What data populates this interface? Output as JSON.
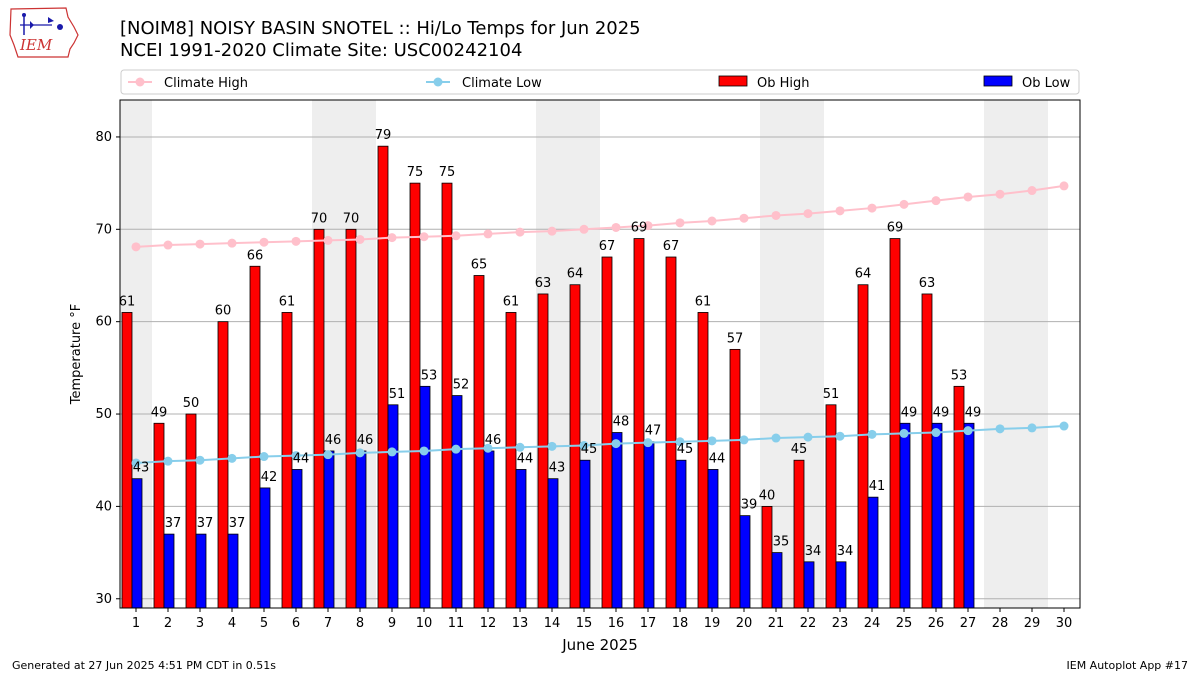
{
  "header": {
    "title_line1": "[NOIM8] NOISY BASIN SNOTEL :: Hi/Lo Temps for Jun 2025",
    "title_line2": "NCEI 1991-2020 Climate Site: USC00242104",
    "logo_text": "IEM"
  },
  "footer": {
    "generated": "Generated at 27 Jun 2025 4:51 PM CDT in 0.51s",
    "app": "IEM Autoplot App #17"
  },
  "colors": {
    "ob_high": "#ff0000",
    "ob_low": "#0000ff",
    "climate_high": "#ffc0cb",
    "climate_low": "#87ceeb",
    "weekend_band": "#eeeeee",
    "grid": "#b0b0b0"
  },
  "chart_data": {
    "type": "bar",
    "xlabel": "June 2025",
    "ylabel": "Temperature °F",
    "ylim": [
      29,
      84
    ],
    "yticks": [
      30,
      40,
      50,
      60,
      70,
      80
    ],
    "grid": "horizontal",
    "legend_placement": "top",
    "days": [
      1,
      2,
      3,
      4,
      5,
      6,
      7,
      8,
      9,
      10,
      11,
      12,
      13,
      14,
      15,
      16,
      17,
      18,
      19,
      20,
      21,
      22,
      23,
      24,
      25,
      26,
      27,
      28,
      29,
      30
    ],
    "weekend_days": [
      1,
      7,
      8,
      14,
      15,
      21,
      22,
      28,
      29
    ],
    "series": [
      {
        "name": "Climate High",
        "kind": "line",
        "values": [
          68.1,
          68.3,
          68.4,
          68.5,
          68.6,
          68.7,
          68.8,
          68.9,
          69.1,
          69.2,
          69.3,
          69.5,
          69.7,
          69.8,
          70.0,
          70.2,
          70.4,
          70.7,
          70.9,
          71.2,
          71.5,
          71.7,
          72.0,
          72.3,
          72.7,
          73.1,
          73.5,
          73.8,
          74.2,
          74.7
        ]
      },
      {
        "name": "Climate Low",
        "kind": "line",
        "values": [
          44.7,
          44.9,
          45.0,
          45.2,
          45.4,
          45.5,
          45.6,
          45.8,
          45.9,
          46.0,
          46.2,
          46.3,
          46.4,
          46.5,
          46.6,
          46.8,
          46.9,
          47.0,
          47.1,
          47.2,
          47.4,
          47.5,
          47.6,
          47.8,
          47.9,
          48.0,
          48.2,
          48.4,
          48.5,
          48.7
        ]
      },
      {
        "name": "Ob High",
        "kind": "bar",
        "values": [
          61,
          49,
          50,
          60,
          66,
          61,
          70,
          70,
          79,
          75,
          75,
          65,
          61,
          63,
          64,
          67,
          69,
          67,
          61,
          57,
          40,
          45,
          51,
          64,
          69,
          63,
          53,
          null,
          null,
          null
        ]
      },
      {
        "name": "Ob Low",
        "kind": "bar",
        "values": [
          43,
          37,
          37,
          37,
          42,
          44,
          46,
          46,
          51,
          53,
          52,
          46,
          44,
          43,
          45,
          48,
          47,
          45,
          44,
          39,
          35,
          34,
          34,
          41,
          49,
          49,
          49,
          null,
          null,
          null
        ]
      }
    ]
  }
}
